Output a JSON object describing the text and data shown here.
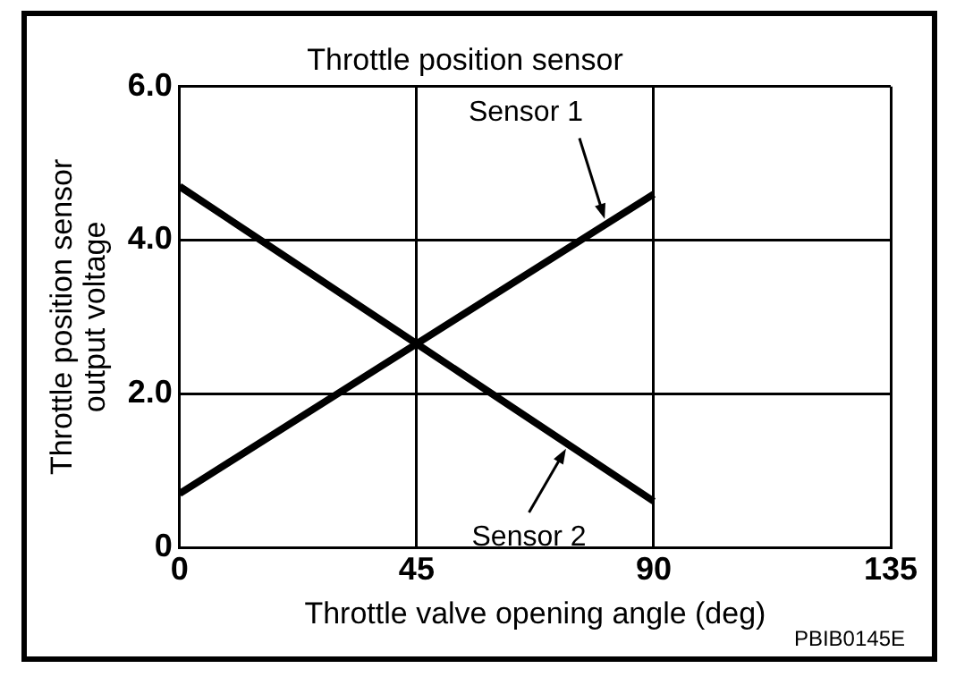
{
  "chart_data": {
    "type": "line",
    "title": "Throttle position sensor",
    "xlabel": "Throttle valve opening angle (deg)",
    "ylabel": "Throttle position sensor output voltage",
    "series": [
      {
        "name": "Sensor 1",
        "color": "#000000",
        "x": [
          0,
          45,
          90
        ],
        "values": [
          0.7,
          2.65,
          4.6
        ]
      },
      {
        "name": "Sensor 2",
        "color": "#000000",
        "x": [
          0,
          45,
          90
        ],
        "values": [
          4.7,
          2.65,
          0.6
        ]
      }
    ],
    "xlim": [
      0,
      135
    ],
    "xticks": [
      0,
      45,
      90,
      135
    ],
    "ylim": [
      0,
      6
    ],
    "yticks": [
      0,
      {
        "value": 2,
        "label": "2.0"
      },
      {
        "value": 4,
        "label": "4.0"
      },
      {
        "value": 6,
        "label": "6.0"
      }
    ],
    "grid": true,
    "marker": "none",
    "line_style": "solid",
    "annotations": [
      "PBIB0145E"
    ]
  }
}
